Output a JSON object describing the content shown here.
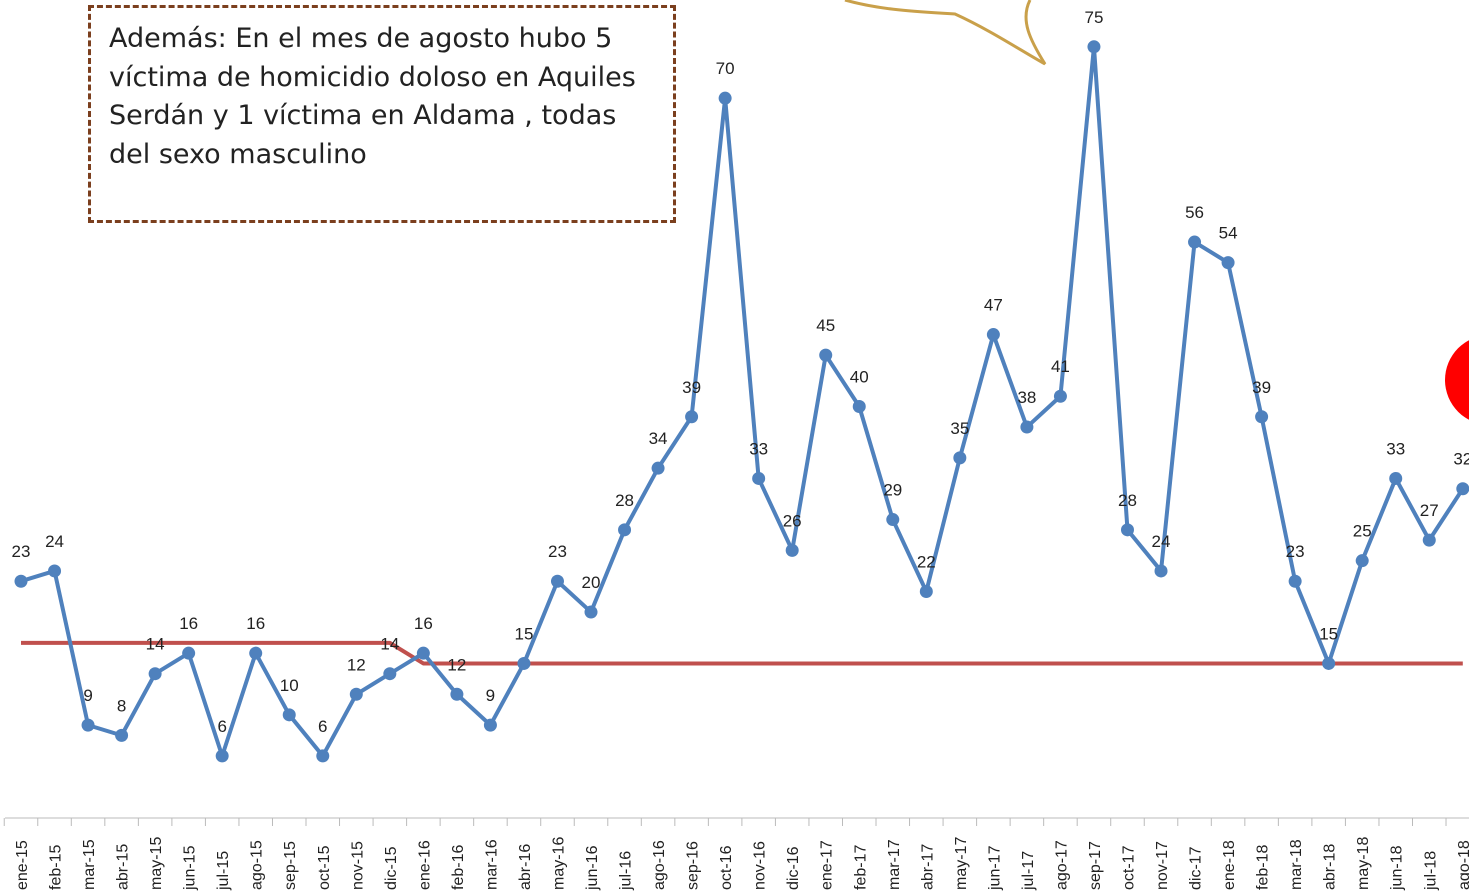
{
  "annotation": "Además: En el mes de agosto hubo 5 víctima de homicidio doloso en Aquiles Serdán y 1 víctima en Aldama , todas del sexo masculino",
  "chart_data": {
    "type": "line",
    "categories": [
      "ene-15",
      "feb-15",
      "mar-15",
      "abr-15",
      "may-15",
      "jun-15",
      "jul-15",
      "ago-15",
      "sep-15",
      "oct-15",
      "nov-15",
      "dic-15",
      "ene-16",
      "feb-16",
      "mar-16",
      "abr-16",
      "may-16",
      "jun-16",
      "jul-16",
      "ago-16",
      "sep-16",
      "oct-16",
      "nov-16",
      "dic-16",
      "ene-17",
      "feb-17",
      "mar-17",
      "abr-17",
      "may-17",
      "jun-17",
      "jul-17",
      "ago-17",
      "sep-17",
      "oct-17",
      "nov-17",
      "dic-17",
      "ene-18",
      "feb-18",
      "mar-18",
      "abr-18",
      "may-18",
      "jun-18",
      "jul-18",
      "ago-18"
    ],
    "series": [
      {
        "color": "#4f81bd",
        "labels": true,
        "markers": true,
        "values": [
          23,
          24,
          9,
          8,
          14,
          16,
          6,
          16,
          10,
          6,
          12,
          14,
          16,
          12,
          9,
          15,
          23,
          20,
          28,
          34,
          39,
          70,
          33,
          26,
          45,
          40,
          29,
          22,
          35,
          47,
          38,
          41,
          75,
          28,
          24,
          56,
          54,
          39,
          23,
          15,
          25,
          33,
          27,
          32
        ]
      },
      {
        "color": "#c0504d",
        "labels": false,
        "markers": false,
        "values": [
          17,
          17,
          17,
          17,
          17,
          17,
          17,
          17,
          17,
          17,
          17,
          17,
          15,
          15,
          15,
          15,
          15,
          15,
          15,
          15,
          15,
          15,
          15,
          15,
          15,
          15,
          15,
          15,
          15,
          15,
          15,
          15,
          15,
          15,
          15,
          15,
          15,
          15,
          15,
          15,
          15,
          15,
          15,
          15
        ]
      }
    ],
    "ylim": [
      0,
      80
    ]
  }
}
